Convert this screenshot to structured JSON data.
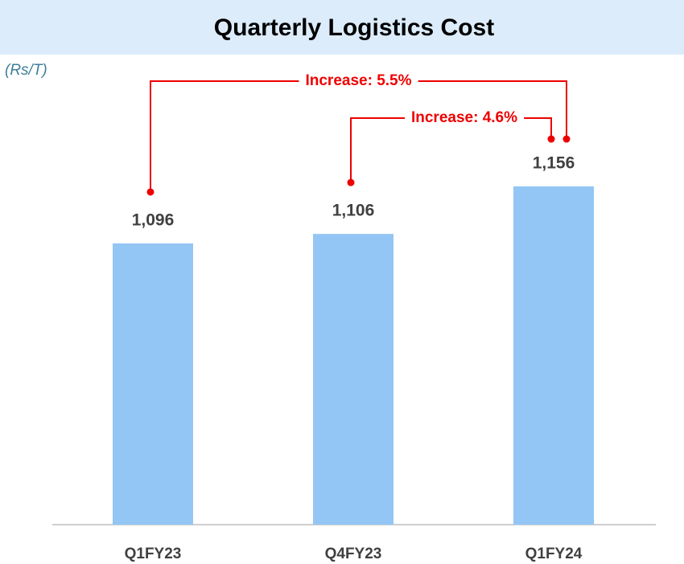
{
  "chart_data": {
    "type": "bar",
    "title": "Quarterly Logistics Cost",
    "y_unit": "(Rs/T)",
    "categories": [
      "Q1FY23",
      "Q4FY23",
      "Q1FY24"
    ],
    "values": [
      1096,
      1106,
      1156
    ],
    "value_labels": [
      "1,096",
      "1,106",
      "1,156"
    ],
    "color": "#93c6f5",
    "ylim": [
      800,
      1200
    ],
    "annotations": [
      {
        "text": "Increase: 5.5%",
        "from": "Q1FY23",
        "to": "Q1FY24"
      },
      {
        "text": "Increase: 4.6%",
        "from": "Q4FY23",
        "to": "Q1FY24"
      }
    ]
  }
}
